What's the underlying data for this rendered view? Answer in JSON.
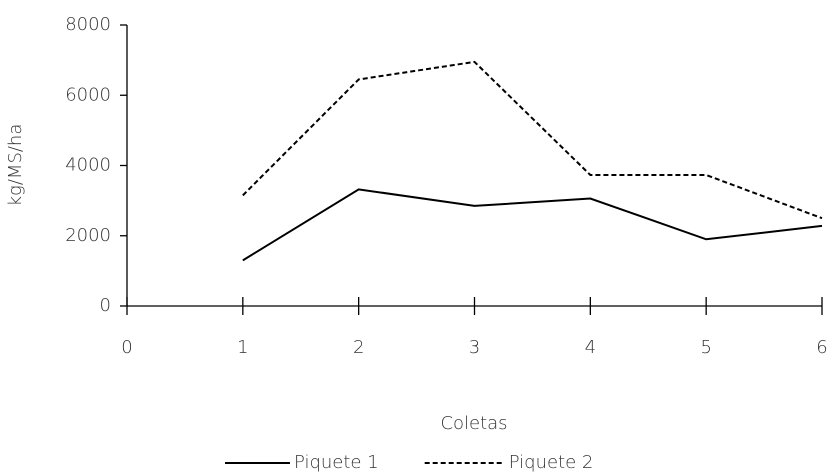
{
  "chart_data": {
    "type": "line",
    "x_label": "Coletas",
    "y_label": "kg/MS/ha",
    "x": [
      1,
      2,
      3,
      4,
      5,
      6
    ],
    "series": [
      {
        "name": "Piquete 1",
        "color": "#000000",
        "line_style": "solid",
        "values": [
          1300,
          3320,
          2850,
          3060,
          1900,
          2280
        ]
      },
      {
        "name": "Piquete 2",
        "color": "#000000",
        "line_style": "dashed",
        "values": [
          3150,
          6450,
          6950,
          3730,
          3730,
          2500
        ]
      }
    ],
    "xlim": [
      0,
      6
    ],
    "xticks": [
      0,
      1,
      2,
      3,
      4,
      5,
      6
    ],
    "ylim": [
      0,
      8000
    ],
    "yticks": [
      0,
      2000,
      4000,
      6000,
      8000
    ],
    "legend": "bottom"
  }
}
